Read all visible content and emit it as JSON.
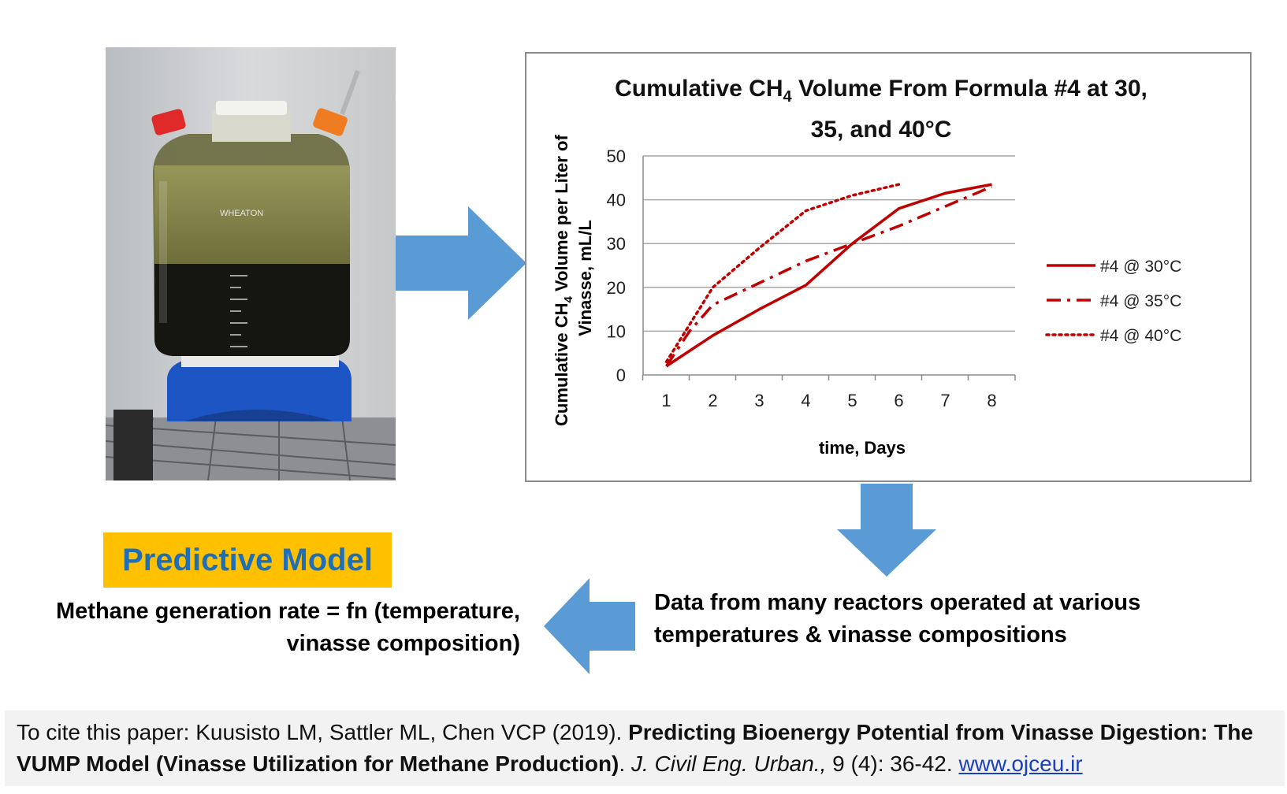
{
  "chart_data": {
    "type": "line",
    "title": "Cumulative CH4 Volume From Formula #4 at 30, 35, and 40°C",
    "title_line1_prefix": "Cumulative CH",
    "title_subscript": "4",
    "title_line1_suffix": " Volume From Formula #4 at 30,",
    "title_line2": "35, and 40°C",
    "xlabel": "time, Days",
    "ylabel_line1_prefix": "Cumulative CH",
    "ylabel_subscript": "4",
    "ylabel_line1_suffix": " Volume per Liter of",
    "ylabel_line2": "Vinasse, mL/L",
    "x_ticks": [
      "1",
      "2",
      "3",
      "4",
      "5",
      "6",
      "7",
      "8"
    ],
    "y_ticks": [
      "0",
      "10",
      "20",
      "30",
      "40",
      "50"
    ],
    "xlim": [
      0.5,
      8.5
    ],
    "ylim": [
      0,
      50
    ],
    "grid": "horizontal",
    "legend_position": "right",
    "series": [
      {
        "name": "#4 @ 30°C",
        "style": "solid",
        "color": "#c00000",
        "x": [
          1,
          2,
          3,
          4,
          5,
          6,
          7,
          8
        ],
        "y": [
          2,
          9,
          15,
          20.5,
          30,
          38,
          41.5,
          43.5
        ]
      },
      {
        "name": "#4 @ 35°C",
        "style": "dash-dot",
        "color": "#c00000",
        "x": [
          1,
          1.5,
          2,
          3,
          4,
          5,
          6,
          7,
          8
        ],
        "y": [
          2,
          10,
          16,
          21,
          26,
          30,
          34,
          38.5,
          43
        ]
      },
      {
        "name": "#4 @ 40°C",
        "style": "dotted",
        "color": "#c00000",
        "x": [
          1,
          2,
          3,
          4,
          5,
          6
        ],
        "y": [
          3,
          20,
          29,
          37.5,
          41,
          43.5
        ]
      }
    ]
  },
  "photo": {
    "label": "WHEATON"
  },
  "predictive_model": {
    "label": "Predictive Model"
  },
  "methane": {
    "line1": "Methane generation rate = fn (temperature,",
    "line2": "vinasse composition)"
  },
  "data_reactors": {
    "line1": "Data from many reactors operated at various",
    "line2": "temperatures & vinasse compositions"
  },
  "citation": {
    "prefix": "To cite this paper: Kuusisto LM, Sattler ML, Chen VCP (2019). ",
    "title": "Predicting Bioenergy Potential from Vinasse Digestion: The VUMP Model (Vinasse Utilization for Methane Production)",
    "sep": ". ",
    "journal": "J. Civil Eng. Urban.,",
    "volume": " 9 (4): 36-42. ",
    "link": "www.ojceu.ir"
  },
  "colors": {
    "arrow": "#5b9bd5",
    "series": "#c00000",
    "highlight": "#ffc000",
    "model_text": "#1f6fb7"
  }
}
